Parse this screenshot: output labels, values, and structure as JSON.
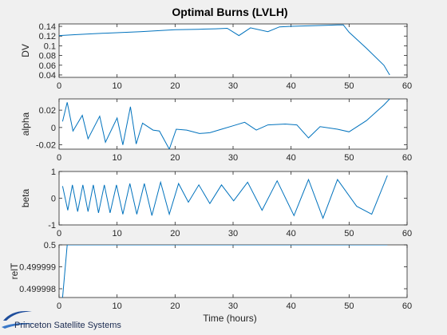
{
  "chart_data": [
    {
      "type": "line",
      "title": "Optimal Burns (LVLH)",
      "xlabel": "",
      "ylabel": "DV",
      "xlim": [
        0,
        60
      ],
      "ylim": [
        0.035,
        0.145
      ],
      "xticks": [
        0,
        10,
        20,
        30,
        40,
        50,
        60
      ],
      "yticks": [
        0.04,
        0.06,
        0.08,
        0.1,
        0.12,
        0.14
      ],
      "ytick_labels": [
        "0.04",
        "0.06",
        "0.08",
        "0.1",
        "0.12",
        "0.14"
      ],
      "series": [
        {
          "x": [
            0,
            3,
            6,
            8,
            10,
            12,
            14,
            17,
            20,
            24,
            27,
            29,
            31,
            33,
            36,
            38,
            40,
            43,
            46,
            48,
            49,
            50,
            53,
            56,
            57
          ],
          "y": [
            0.121,
            0.123,
            0.125,
            0.126,
            0.127,
            0.128,
            0.129,
            0.131,
            0.133,
            0.134,
            0.135,
            0.136,
            0.121,
            0.137,
            0.129,
            0.139,
            0.14,
            0.141,
            0.142,
            0.143,
            0.143,
            0.128,
            0.095,
            0.06,
            0.04
          ]
        }
      ]
    },
    {
      "type": "line",
      "xlabel": "",
      "ylabel": "alpha",
      "xlim": [
        0,
        60
      ],
      "ylim": [
        -0.025,
        0.033
      ],
      "xticks": [
        0,
        10,
        20,
        30,
        40,
        50,
        60
      ],
      "yticks": [
        -0.02,
        0,
        0.02
      ],
      "ytick_labels": [
        "-0.02",
        "0",
        "0.02"
      ],
      "series": [
        {
          "x": [
            0.6,
            1.4,
            2.4,
            4.0,
            5.0,
            7.0,
            8.0,
            10.0,
            11.0,
            12.3,
            13.3,
            14.4,
            16.2,
            17.3,
            19.0,
            20.2,
            22.0,
            24.2,
            26.0,
            28.0,
            30.0,
            32.0,
            34.0,
            36.0,
            39.0,
            41.0,
            43.0,
            45.0,
            48.0,
            50.0,
            53.0,
            56.0,
            57.0
          ],
          "y": [
            0.007,
            0.029,
            -0.004,
            0.014,
            -0.013,
            0.013,
            -0.017,
            0.011,
            -0.02,
            0.024,
            -0.019,
            0.005,
            -0.003,
            -0.004,
            -0.025,
            -0.002,
            -0.003,
            -0.007,
            -0.006,
            -0.002,
            0.002,
            0.006,
            -0.003,
            0.003,
            0.004,
            0.003,
            -0.012,
            0.001,
            -0.002,
            -0.005,
            0.008,
            0.026,
            0.033
          ]
        }
      ]
    },
    {
      "type": "line",
      "xlabel": "",
      "ylabel": "beta",
      "xlim": [
        0,
        60
      ],
      "ylim": [
        -1,
        1
      ],
      "xticks": [
        0,
        10,
        20,
        30,
        40,
        50,
        60
      ],
      "yticks": [
        -1,
        0,
        1
      ],
      "ytick_labels": [
        "-1",
        "0",
        "1"
      ],
      "series": [
        {
          "x": [
            0.6,
            1.5,
            2.3,
            3.2,
            4.1,
            5.0,
            5.9,
            6.8,
            7.8,
            8.8,
            9.9,
            11.0,
            12.2,
            13.4,
            14.7,
            16.0,
            17.5,
            19.0,
            20.6,
            22.3,
            24.1,
            26.0,
            28.0,
            30.1,
            32.5,
            35.0,
            37.6,
            40.5,
            43.0,
            45.5,
            48.0,
            51.3,
            53.9,
            56.6
          ],
          "y": [
            0.45,
            -0.45,
            0.5,
            -0.5,
            0.5,
            -0.5,
            0.5,
            -0.55,
            0.5,
            -0.55,
            0.5,
            -0.6,
            0.55,
            -0.6,
            0.55,
            -0.65,
            0.6,
            -0.6,
            0.55,
            -0.15,
            0.5,
            -0.2,
            0.5,
            -0.1,
            0.6,
            -0.45,
            0.65,
            -0.65,
            0.7,
            -0.75,
            0.7,
            -0.3,
            -0.6,
            0.85
          ]
        }
      ]
    },
    {
      "type": "line",
      "xlabel": "Time (hours)",
      "ylabel": "relT",
      "xlim": [
        0,
        60
      ],
      "ylim": [
        0.4999976,
        0.5
      ],
      "xticks": [
        0,
        10,
        20,
        30,
        40,
        50,
        60
      ],
      "yticks": [
        0.499998,
        0.499999,
        0.5
      ],
      "ytick_labels": [
        "0.499998",
        "0.499999",
        "0.5"
      ],
      "series": [
        {
          "x": [
            0.6,
            1.4,
            2.0,
            10.0,
            20.0,
            30.0,
            40.0,
            50.0,
            56.6
          ],
          "y": [
            0.4999976,
            0.5,
            0.5,
            0.5,
            0.5,
            0.5,
            0.5,
            0.5,
            0.5
          ]
        }
      ]
    }
  ],
  "branding": {
    "company": "Princeton Satellite Systems"
  },
  "colors": {
    "line": "#0072bd",
    "axes_bg": "#ffffff",
    "figure_bg": "#f0f0f0"
  }
}
